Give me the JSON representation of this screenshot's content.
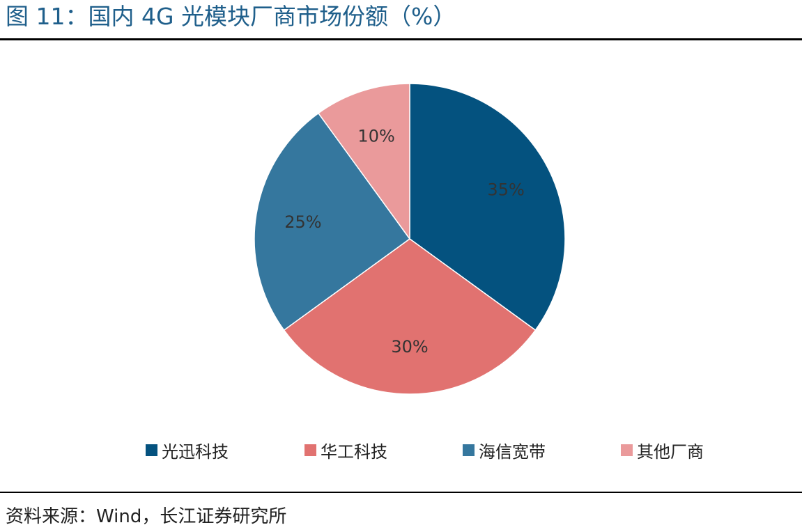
{
  "figure": {
    "title": "图 11：国内 4G 光模块厂商市场份额（%）",
    "source": "资料来源：Wind，长江证券研究所"
  },
  "chart_data": {
    "type": "pie",
    "categories": [
      "光迅科技",
      "华工科技",
      "海信宽带",
      "其他厂商"
    ],
    "values": [
      35,
      30,
      25,
      10
    ],
    "data_labels": [
      "35%",
      "30%",
      "25%",
      "10%"
    ],
    "colors": [
      "#04527f",
      "#e17270",
      "#35779e",
      "#ea9a9b"
    ],
    "start": "12 o'clock",
    "direction": "clockwise",
    "legend_position": "bottom"
  }
}
